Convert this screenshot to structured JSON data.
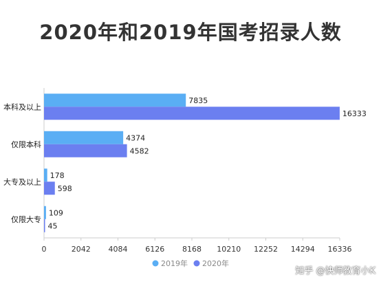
{
  "chart_data": {
    "type": "bar",
    "orientation": "horizontal",
    "title": "2020年和2019年国考招录人数",
    "categories": [
      "本科及以上",
      "仅限本科",
      "大专及以上",
      "仅限大专"
    ],
    "series": [
      {
        "name": "2019年",
        "values": [
          7835,
          4374,
          178,
          109
        ],
        "color": "#5aaef4"
      },
      {
        "name": "2020年",
        "values": [
          16333,
          4582,
          598,
          45
        ],
        "color": "#6b7ff0"
      }
    ],
    "x_ticks": [
      0,
      2042,
      4084,
      6126,
      8168,
      10210,
      12252,
      14294,
      16336
    ],
    "xlim": [
      0,
      16336
    ],
    "legend_position": "bottom",
    "grid": false
  },
  "watermark": "知乎 @快师教育小K"
}
